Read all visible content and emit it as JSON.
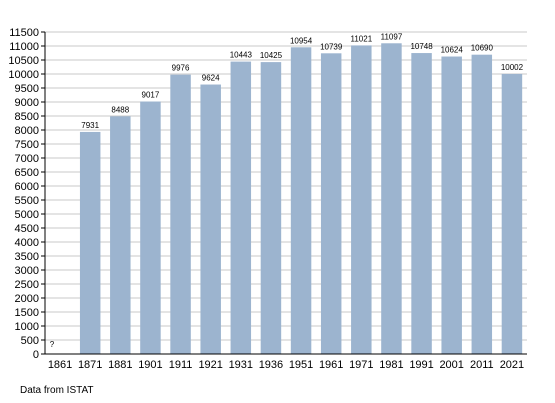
{
  "chart_data": {
    "type": "bar",
    "categories": [
      "1861",
      "1871",
      "1881",
      "1901",
      "1911",
      "1921",
      "1931",
      "1936",
      "1951",
      "1961",
      "1971",
      "1981",
      "1991",
      "2001",
      "2011",
      "2021"
    ],
    "values": [
      null,
      7931,
      8488,
      9017,
      9976,
      9624,
      10443,
      10425,
      10954,
      10739,
      11021,
      11097,
      10748,
      10624,
      10690,
      10002
    ],
    "data_labels": [
      "?",
      "7931",
      "8488",
      "9017",
      "9976",
      "9624",
      "10443",
      "10425",
      "10954",
      "10739",
      "11021",
      "11097",
      "10748",
      "10624",
      "10690",
      "10002"
    ],
    "y_ticks": [
      0,
      500,
      1000,
      1500,
      2000,
      2500,
      3000,
      3500,
      4000,
      4500,
      5000,
      5500,
      6000,
      6500,
      7000,
      7500,
      8000,
      8500,
      9000,
      9500,
      10000,
      10500,
      11000,
      11500
    ],
    "ylim": [
      0,
      11500
    ],
    "grid": true,
    "legend": "none",
    "colors": {
      "bar": "#9cb4cf",
      "grid": "#c8c8c8",
      "axis": "#000000"
    }
  },
  "footer": {
    "source": "Data from ISTAT"
  }
}
